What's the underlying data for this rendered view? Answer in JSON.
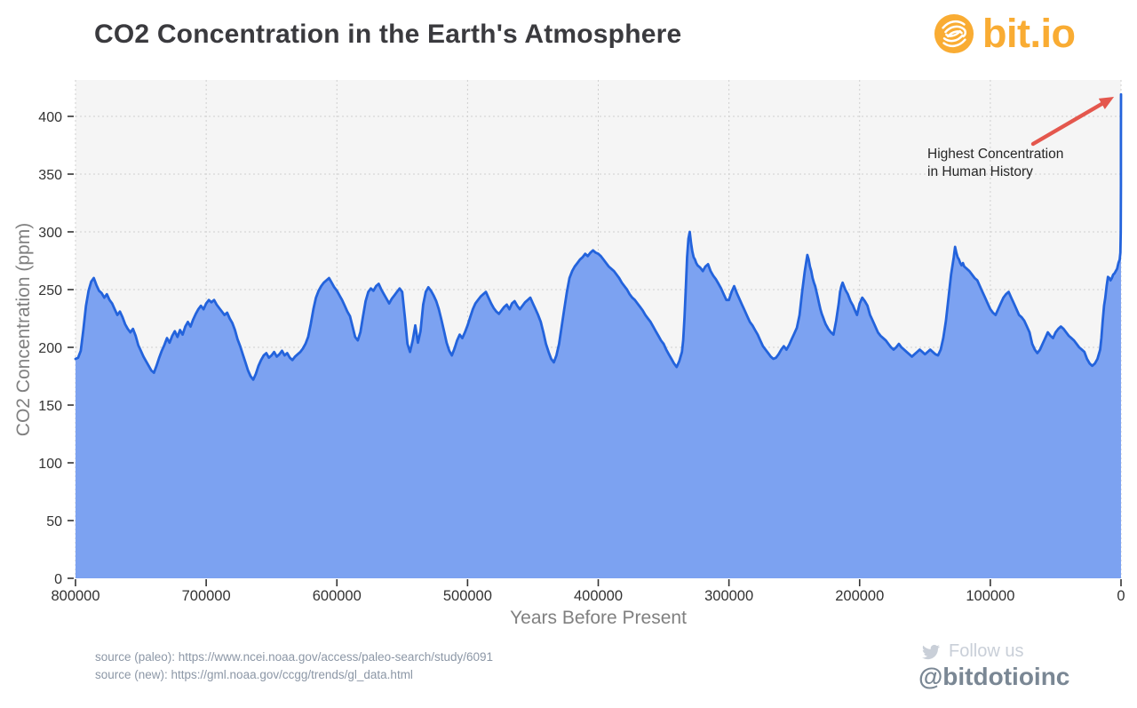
{
  "header": {
    "title": "CO2 Concentration in the Earth's Atmosphere"
  },
  "logo": {
    "text": "bit.io",
    "icon": "bitio-swirl-icon"
  },
  "colors": {
    "title": "#3A3A3E",
    "line": "#2363DC",
    "fill": "#7CA2F1",
    "plot-bg": "#F5F5F5",
    "grid": "#CFCFCF",
    "tick-label": "#333333",
    "axis-title": "#808080",
    "annotation": "#262626",
    "arrow": "#E4574D",
    "logo": "#F9AC33",
    "source": "#8C97A6",
    "follow": "#C9CFD8",
    "handle": "#7A8794"
  },
  "chart_data": {
    "type": "area",
    "title": "CO2 Concentration in the Earth's Atmosphere",
    "xlabel": "Years Before Present",
    "ylabel": "CO2 Concentration (ppm)",
    "x_units": "years before present (x stored in thousands of years BP)",
    "xlim": [
      800000,
      0
    ],
    "ylim": [
      0,
      431
    ],
    "x_ticks": [
      800000,
      700000,
      600000,
      500000,
      400000,
      300000,
      200000,
      100000,
      0
    ],
    "y_ticks": [
      0,
      50,
      100,
      150,
      200,
      250,
      300,
      350,
      400
    ],
    "grid": true,
    "legend": false,
    "series_name": "CO2 concentration (ppm)",
    "annotation": {
      "line1": "Highest Concentration",
      "line2": "in Human History",
      "points_to": {
        "x_years_bp": 0,
        "y_ppm": 419
      }
    },
    "points": [
      [
        800,
        190
      ],
      [
        798,
        191
      ],
      [
        796,
        197
      ],
      [
        794,
        215
      ],
      [
        792,
        236
      ],
      [
        790,
        249
      ],
      [
        788,
        257
      ],
      [
        786,
        260
      ],
      [
        784,
        254
      ],
      [
        782,
        249
      ],
      [
        780,
        247
      ],
      [
        778,
        243
      ],
      [
        776,
        246
      ],
      [
        774,
        241
      ],
      [
        772,
        238
      ],
      [
        770,
        233
      ],
      [
        768,
        228
      ],
      [
        766,
        231
      ],
      [
        764,
        226
      ],
      [
        762,
        220
      ],
      [
        760,
        216
      ],
      [
        758,
        213
      ],
      [
        756,
        216
      ],
      [
        754,
        210
      ],
      [
        752,
        202
      ],
      [
        750,
        197
      ],
      [
        748,
        192
      ],
      [
        746,
        188
      ],
      [
        744,
        184
      ],
      [
        742,
        180
      ],
      [
        740,
        178
      ],
      [
        738,
        184
      ],
      [
        736,
        191
      ],
      [
        734,
        197
      ],
      [
        732,
        202
      ],
      [
        730,
        208
      ],
      [
        728,
        204
      ],
      [
        726,
        210
      ],
      [
        724,
        214
      ],
      [
        722,
        209
      ],
      [
        720,
        215
      ],
      [
        718,
        211
      ],
      [
        716,
        218
      ],
      [
        714,
        222
      ],
      [
        712,
        218
      ],
      [
        710,
        224
      ],
      [
        708,
        229
      ],
      [
        706,
        233
      ],
      [
        704,
        236
      ],
      [
        702,
        233
      ],
      [
        700,
        238
      ],
      [
        698,
        241
      ],
      [
        696,
        239
      ],
      [
        694,
        241
      ],
      [
        692,
        237
      ],
      [
        690,
        234
      ],
      [
        688,
        231
      ],
      [
        686,
        228
      ],
      [
        684,
        230
      ],
      [
        682,
        225
      ],
      [
        680,
        221
      ],
      [
        678,
        215
      ],
      [
        676,
        207
      ],
      [
        674,
        201
      ],
      [
        672,
        194
      ],
      [
        670,
        187
      ],
      [
        668,
        180
      ],
      [
        666,
        175
      ],
      [
        664,
        172
      ],
      [
        662,
        177
      ],
      [
        660,
        184
      ],
      [
        658,
        189
      ],
      [
        656,
        193
      ],
      [
        654,
        195
      ],
      [
        652,
        191
      ],
      [
        650,
        193
      ],
      [
        648,
        196
      ],
      [
        646,
        192
      ],
      [
        644,
        194
      ],
      [
        642,
        197
      ],
      [
        640,
        193
      ],
      [
        638,
        195
      ],
      [
        636,
        191
      ],
      [
        634,
        189
      ],
      [
        632,
        192
      ],
      [
        630,
        194
      ],
      [
        628,
        196
      ],
      [
        626,
        199
      ],
      [
        624,
        203
      ],
      [
        622,
        209
      ],
      [
        620,
        220
      ],
      [
        618,
        233
      ],
      [
        616,
        243
      ],
      [
        614,
        249
      ],
      [
        612,
        253
      ],
      [
        610,
        256
      ],
      [
        608,
        258
      ],
      [
        606,
        260
      ],
      [
        604,
        256
      ],
      [
        602,
        252
      ],
      [
        600,
        249
      ],
      [
        598,
        245
      ],
      [
        596,
        241
      ],
      [
        594,
        236
      ],
      [
        592,
        231
      ],
      [
        590,
        227
      ],
      [
        588,
        218
      ],
      [
        586,
        209
      ],
      [
        584,
        206
      ],
      [
        582,
        213
      ],
      [
        580,
        227
      ],
      [
        578,
        240
      ],
      [
        576,
        248
      ],
      [
        574,
        251
      ],
      [
        572,
        249
      ],
      [
        570,
        253
      ],
      [
        568,
        255
      ],
      [
        566,
        250
      ],
      [
        564,
        246
      ],
      [
        562,
        242
      ],
      [
        560,
        238
      ],
      [
        558,
        242
      ],
      [
        556,
        245
      ],
      [
        554,
        248
      ],
      [
        552,
        251
      ],
      [
        550,
        248
      ],
      [
        548,
        226
      ],
      [
        546,
        203
      ],
      [
        544,
        196
      ],
      [
        542,
        206
      ],
      [
        540,
        219
      ],
      [
        538,
        204
      ],
      [
        536,
        214
      ],
      [
        534,
        237
      ],
      [
        532,
        248
      ],
      [
        530,
        252
      ],
      [
        528,
        249
      ],
      [
        526,
        245
      ],
      [
        524,
        240
      ],
      [
        522,
        233
      ],
      [
        520,
        224
      ],
      [
        518,
        214
      ],
      [
        516,
        204
      ],
      [
        514,
        197
      ],
      [
        512,
        193
      ],
      [
        510,
        199
      ],
      [
        508,
        206
      ],
      [
        506,
        211
      ],
      [
        504,
        208
      ],
      [
        502,
        213
      ],
      [
        500,
        219
      ],
      [
        498,
        226
      ],
      [
        496,
        233
      ],
      [
        494,
        238
      ],
      [
        492,
        241
      ],
      [
        490,
        244
      ],
      [
        488,
        246
      ],
      [
        486,
        248
      ],
      [
        484,
        243
      ],
      [
        482,
        238
      ],
      [
        480,
        234
      ],
      [
        478,
        231
      ],
      [
        476,
        229
      ],
      [
        474,
        232
      ],
      [
        472,
        235
      ],
      [
        470,
        237
      ],
      [
        468,
        233
      ],
      [
        466,
        238
      ],
      [
        464,
        240
      ],
      [
        462,
        236
      ],
      [
        460,
        233
      ],
      [
        458,
        236
      ],
      [
        456,
        239
      ],
      [
        454,
        241
      ],
      [
        452,
        243
      ],
      [
        450,
        238
      ],
      [
        448,
        233
      ],
      [
        446,
        228
      ],
      [
        444,
        222
      ],
      [
        442,
        213
      ],
      [
        440,
        203
      ],
      [
        438,
        196
      ],
      [
        436,
        190
      ],
      [
        434,
        187
      ],
      [
        432,
        193
      ],
      [
        430,
        203
      ],
      [
        428,
        218
      ],
      [
        426,
        233
      ],
      [
        424,
        248
      ],
      [
        422,
        260
      ],
      [
        420,
        266
      ],
      [
        418,
        270
      ],
      [
        416,
        273
      ],
      [
        414,
        276
      ],
      [
        412,
        278
      ],
      [
        410,
        281
      ],
      [
        408,
        279
      ],
      [
        406,
        282
      ],
      [
        404,
        284
      ],
      [
        402,
        282
      ],
      [
        400,
        281
      ],
      [
        398,
        279
      ],
      [
        396,
        276
      ],
      [
        394,
        273
      ],
      [
        392,
        270
      ],
      [
        390,
        268
      ],
      [
        388,
        266
      ],
      [
        386,
        263
      ],
      [
        384,
        260
      ],
      [
        382,
        256
      ],
      [
        380,
        253
      ],
      [
        378,
        250
      ],
      [
        376,
        246
      ],
      [
        374,
        243
      ],
      [
        372,
        241
      ],
      [
        370,
        238
      ],
      [
        368,
        235
      ],
      [
        366,
        232
      ],
      [
        364,
        228
      ],
      [
        362,
        225
      ],
      [
        360,
        222
      ],
      [
        358,
        218
      ],
      [
        356,
        214
      ],
      [
        354,
        210
      ],
      [
        352,
        206
      ],
      [
        350,
        203
      ],
      [
        348,
        198
      ],
      [
        346,
        194
      ],
      [
        344,
        190
      ],
      [
        342,
        186
      ],
      [
        340,
        183
      ],
      [
        338,
        188
      ],
      [
        336,
        196
      ],
      [
        335,
        206
      ],
      [
        334,
        226
      ],
      [
        333,
        252
      ],
      [
        332,
        278
      ],
      [
        331,
        294
      ],
      [
        330,
        300
      ],
      [
        329,
        290
      ],
      [
        328,
        283
      ],
      [
        327,
        278
      ],
      [
        326,
        276
      ],
      [
        325,
        273
      ],
      [
        324,
        271
      ],
      [
        322,
        269
      ],
      [
        320,
        266
      ],
      [
        318,
        270
      ],
      [
        316,
        272
      ],
      [
        314,
        266
      ],
      [
        312,
        262
      ],
      [
        310,
        259
      ],
      [
        308,
        255
      ],
      [
        306,
        251
      ],
      [
        304,
        246
      ],
      [
        302,
        241
      ],
      [
        300,
        241
      ],
      [
        298,
        248
      ],
      [
        296,
        253
      ],
      [
        294,
        247
      ],
      [
        292,
        242
      ],
      [
        290,
        237
      ],
      [
        288,
        232
      ],
      [
        286,
        227
      ],
      [
        284,
        222
      ],
      [
        282,
        219
      ],
      [
        280,
        215
      ],
      [
        278,
        211
      ],
      [
        276,
        206
      ],
      [
        274,
        201
      ],
      [
        272,
        198
      ],
      [
        270,
        195
      ],
      [
        268,
        192
      ],
      [
        266,
        190
      ],
      [
        264,
        191
      ],
      [
        262,
        194
      ],
      [
        260,
        198
      ],
      [
        258,
        201
      ],
      [
        256,
        198
      ],
      [
        254,
        202
      ],
      [
        252,
        207
      ],
      [
        250,
        212
      ],
      [
        248,
        217
      ],
      [
        246,
        228
      ],
      [
        244,
        248
      ],
      [
        242,
        266
      ],
      [
        240,
        280
      ],
      [
        239,
        276
      ],
      [
        238,
        270
      ],
      [
        237,
        266
      ],
      [
        236,
        260
      ],
      [
        235,
        256
      ],
      [
        234,
        253
      ],
      [
        233,
        248
      ],
      [
        232,
        243
      ],
      [
        231,
        238
      ],
      [
        230,
        233
      ],
      [
        229,
        229
      ],
      [
        228,
        226
      ],
      [
        227,
        223
      ],
      [
        226,
        220
      ],
      [
        225,
        218
      ],
      [
        224,
        216
      ],
      [
        222,
        213
      ],
      [
        220,
        211
      ],
      [
        218,
        223
      ],
      [
        216,
        238
      ],
      [
        215,
        248
      ],
      [
        214,
        253
      ],
      [
        213,
        256
      ],
      [
        212,
        253
      ],
      [
        211,
        250
      ],
      [
        210,
        248
      ],
      [
        209,
        246
      ],
      [
        208,
        243
      ],
      [
        207,
        240
      ],
      [
        206,
        238
      ],
      [
        205,
        236
      ],
      [
        204,
        233
      ],
      [
        202,
        228
      ],
      [
        200,
        238
      ],
      [
        198,
        243
      ],
      [
        196,
        240
      ],
      [
        194,
        236
      ],
      [
        192,
        228
      ],
      [
        190,
        223
      ],
      [
        188,
        218
      ],
      [
        186,
        213
      ],
      [
        184,
        210
      ],
      [
        182,
        208
      ],
      [
        180,
        206
      ],
      [
        178,
        203
      ],
      [
        176,
        200
      ],
      [
        174,
        198
      ],
      [
        172,
        200
      ],
      [
        170,
        203
      ],
      [
        168,
        200
      ],
      [
        166,
        198
      ],
      [
        164,
        196
      ],
      [
        162,
        194
      ],
      [
        160,
        192
      ],
      [
        158,
        194
      ],
      [
        156,
        196
      ],
      [
        154,
        198
      ],
      [
        152,
        196
      ],
      [
        150,
        194
      ],
      [
        148,
        196
      ],
      [
        146,
        198
      ],
      [
        144,
        196
      ],
      [
        142,
        194
      ],
      [
        140,
        193
      ],
      [
        138,
        198
      ],
      [
        136,
        208
      ],
      [
        134,
        223
      ],
      [
        132,
        243
      ],
      [
        130,
        263
      ],
      [
        128,
        278
      ],
      [
        127,
        287
      ],
      [
        126,
        282
      ],
      [
        125,
        278
      ],
      [
        124,
        276
      ],
      [
        123,
        273
      ],
      [
        122,
        271
      ],
      [
        121,
        273
      ],
      [
        120,
        270
      ],
      [
        118,
        268
      ],
      [
        116,
        266
      ],
      [
        114,
        263
      ],
      [
        112,
        260
      ],
      [
        110,
        258
      ],
      [
        108,
        253
      ],
      [
        106,
        248
      ],
      [
        104,
        243
      ],
      [
        102,
        238
      ],
      [
        100,
        233
      ],
      [
        98,
        230
      ],
      [
        96,
        228
      ],
      [
        94,
        233
      ],
      [
        92,
        238
      ],
      [
        90,
        243
      ],
      [
        88,
        246
      ],
      [
        86,
        248
      ],
      [
        84,
        243
      ],
      [
        82,
        238
      ],
      [
        80,
        233
      ],
      [
        78,
        228
      ],
      [
        76,
        226
      ],
      [
        74,
        223
      ],
      [
        72,
        218
      ],
      [
        70,
        213
      ],
      [
        68,
        203
      ],
      [
        66,
        198
      ],
      [
        64,
        195
      ],
      [
        62,
        198
      ],
      [
        60,
        203
      ],
      [
        58,
        208
      ],
      [
        56,
        213
      ],
      [
        54,
        210
      ],
      [
        52,
        208
      ],
      [
        50,
        213
      ],
      [
        48,
        216
      ],
      [
        46,
        218
      ],
      [
        44,
        216
      ],
      [
        42,
        213
      ],
      [
        40,
        210
      ],
      [
        38,
        208
      ],
      [
        36,
        206
      ],
      [
        34,
        203
      ],
      [
        32,
        200
      ],
      [
        30,
        198
      ],
      [
        28,
        196
      ],
      [
        26,
        190
      ],
      [
        24,
        186
      ],
      [
        22,
        184
      ],
      [
        20,
        186
      ],
      [
        18,
        190
      ],
      [
        16,
        198
      ],
      [
        15,
        208
      ],
      [
        14,
        223
      ],
      [
        13,
        236
      ],
      [
        12,
        243
      ],
      [
        11,
        253
      ],
      [
        10,
        261
      ],
      [
        9,
        260
      ],
      [
        8,
        258
      ],
      [
        7,
        260
      ],
      [
        6,
        263
      ],
      [
        5,
        264
      ],
      [
        4,
        266
      ],
      [
        3,
        268
      ],
      [
        2,
        273
      ],
      [
        1,
        276
      ],
      [
        0.5,
        282
      ],
      [
        0.2,
        300
      ],
      [
        0.1,
        340
      ],
      [
        0.05,
        380
      ],
      [
        0,
        419
      ]
    ]
  },
  "footer": {
    "sources": [
      "source (paleo): https://www.ncei.noaa.gov/access/paleo-search/study/6091",
      "source (new): https://gml.noaa.gov/ccgg/trends/gl_data.html"
    ],
    "twitter": {
      "follow_label": "Follow us",
      "handle": "@bitdotioinc"
    }
  }
}
